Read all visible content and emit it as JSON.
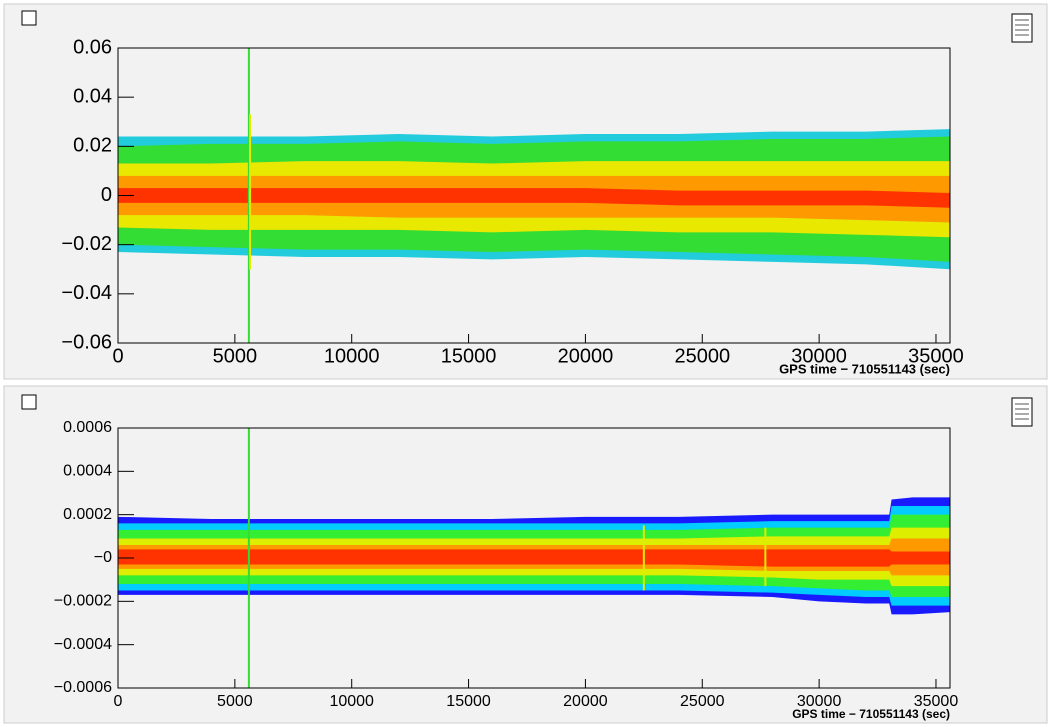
{
  "chart_data": [
    {
      "type": "band",
      "xlabel": "GPS time − 710551143  (sec)",
      "xlim": [
        0,
        35600
      ],
      "ylim": [
        -0.06,
        0.06
      ],
      "xticks": [
        0,
        5000,
        10000,
        15000,
        20000,
        25000,
        30000,
        35000
      ],
      "yticks": [
        0.06,
        0.04,
        0.02,
        0,
        {
          "value": -0.02,
          "label": "−0.02"
        },
        {
          "value": -0.04,
          "label": "−0.04"
        },
        {
          "value": -0.06,
          "label": "−0.06"
        }
      ],
      "x": [
        0,
        4000,
        8000,
        12000,
        16000,
        20000,
        24000,
        28000,
        32000,
        35600
      ],
      "bands": [
        {
          "color": "#22ccdd",
          "upper": [
            0.024,
            0.024,
            0.024,
            0.025,
            0.024,
            0.025,
            0.025,
            0.026,
            0.026,
            0.027
          ],
          "lower": [
            -0.023,
            -0.024,
            -0.025,
            -0.025,
            -0.026,
            -0.025,
            -0.026,
            -0.027,
            -0.028,
            -0.03
          ]
        },
        {
          "color": "#33dd33",
          "upper": [
            0.02,
            0.021,
            0.021,
            0.022,
            0.021,
            0.022,
            0.022,
            0.023,
            0.023,
            0.024
          ],
          "lower": [
            -0.02,
            -0.021,
            -0.022,
            -0.022,
            -0.023,
            -0.022,
            -0.023,
            -0.024,
            -0.025,
            -0.027
          ]
        },
        {
          "color": "#e8e800",
          "upper": [
            0.013,
            0.013,
            0.014,
            0.014,
            0.013,
            0.014,
            0.014,
            0.014,
            0.014,
            0.014
          ],
          "lower": [
            -0.013,
            -0.014,
            -0.014,
            -0.014,
            -0.015,
            -0.014,
            -0.015,
            -0.015,
            -0.016,
            -0.017
          ]
        },
        {
          "color": "#ff9900",
          "upper": [
            0.008,
            0.008,
            0.008,
            0.008,
            0.008,
            0.008,
            0.008,
            0.008,
            0.008,
            0.008
          ],
          "lower": [
            -0.008,
            -0.008,
            -0.008,
            -0.009,
            -0.009,
            -0.009,
            -0.009,
            -0.009,
            -0.01,
            -0.011
          ]
        },
        {
          "color": "#ff3300",
          "upper": [
            0.003,
            0.003,
            0.003,
            0.003,
            0.003,
            0.003,
            0.002,
            0.002,
            0.002,
            0.001
          ],
          "lower": [
            -0.003,
            -0.003,
            -0.003,
            -0.003,
            -0.003,
            -0.003,
            -0.004,
            -0.004,
            -0.004,
            -0.005
          ]
        }
      ],
      "spikes": [
        {
          "x": 5600,
          "low": -0.06,
          "high": 0.06,
          "color": "#33dd33"
        },
        {
          "x": 5650,
          "low": -0.03,
          "high": 0.033,
          "color": "#e8e800"
        }
      ]
    },
    {
      "type": "band",
      "xlabel": "GPS time − 710551143  (sec)",
      "xlim": [
        0,
        35600
      ],
      "ylim": [
        -0.0006,
        0.0006
      ],
      "xticks": [
        0,
        5000,
        10000,
        15000,
        20000,
        25000,
        30000,
        35000
      ],
      "yticks": [
        0.0006,
        0.0004,
        0.0002,
        {
          "value": 0,
          "label": "−0"
        },
        {
          "value": -0.0002,
          "label": "−0.0002"
        },
        {
          "value": -0.0004,
          "label": "−0.0004"
        },
        {
          "value": -0.0006,
          "label": "−0.0006"
        }
      ],
      "x": [
        0,
        4000,
        8000,
        12000,
        16000,
        20000,
        24000,
        28000,
        30000,
        32000,
        33000,
        33100,
        34000,
        35600
      ],
      "bands": [
        {
          "color": "#1a1aff",
          "upper": [
            0.00019,
            0.00018,
            0.00018,
            0.00018,
            0.00018,
            0.00019,
            0.00019,
            0.0002,
            0.0002,
            0.0002,
            0.0002,
            0.00027,
            0.00028,
            0.00028
          ],
          "lower": [
            -0.00017,
            -0.00017,
            -0.00017,
            -0.00017,
            -0.00017,
            -0.00017,
            -0.00017,
            -0.00018,
            -0.0002,
            -0.00021,
            -0.00021,
            -0.00026,
            -0.00026,
            -0.00025
          ]
        },
        {
          "color": "#00ccff",
          "upper": [
            0.00016,
            0.00016,
            0.00016,
            0.00016,
            0.00016,
            0.00016,
            0.00016,
            0.00017,
            0.00017,
            0.00017,
            0.00017,
            0.00024,
            0.00024,
            0.00024
          ],
          "lower": [
            -0.00015,
            -0.00015,
            -0.00015,
            -0.00015,
            -0.00015,
            -0.00015,
            -0.00015,
            -0.00016,
            -0.00017,
            -0.00018,
            -0.00018,
            -0.00022,
            -0.00022,
            -0.00022
          ]
        },
        {
          "color": "#33ee33",
          "upper": [
            0.00013,
            0.00013,
            0.00013,
            0.00013,
            0.00013,
            0.00013,
            0.00013,
            0.00014,
            0.00014,
            0.00014,
            0.00014,
            0.0002,
            0.0002,
            0.0002
          ],
          "lower": [
            -0.00012,
            -0.00012,
            -0.00012,
            -0.00012,
            -0.00012,
            -0.00012,
            -0.00012,
            -0.00013,
            -0.00014,
            -0.00015,
            -0.00015,
            -0.00018,
            -0.00018,
            -0.00018
          ]
        },
        {
          "color": "#ddee00",
          "upper": [
            9e-05,
            9e-05,
            9e-05,
            9e-05,
            9e-05,
            9e-05,
            9e-05,
            0.0001,
            0.0001,
            0.0001,
            0.0001,
            0.00014,
            0.00014,
            0.00014
          ],
          "lower": [
            -8e-05,
            -8e-05,
            -8e-05,
            -8e-05,
            -8e-05,
            -8e-05,
            -8e-05,
            -9e-05,
            -0.0001,
            -0.0001,
            -0.0001,
            -0.00013,
            -0.00013,
            -0.00013
          ]
        },
        {
          "color": "#ff9900",
          "upper": [
            6e-05,
            6e-05,
            6e-05,
            6e-05,
            6e-05,
            6e-05,
            6e-05,
            6e-05,
            6e-05,
            6e-05,
            6e-05,
            9e-05,
            9e-05,
            9e-05
          ],
          "lower": [
            -5e-05,
            -5e-05,
            -5e-05,
            -5e-05,
            -5e-05,
            -5e-05,
            -5e-05,
            -6e-05,
            -6e-05,
            -6e-05,
            -6e-05,
            -8e-05,
            -8e-05,
            -8e-05
          ]
        },
        {
          "color": "#ff3300",
          "upper": [
            4e-05,
            4e-05,
            4e-05,
            4e-05,
            4e-05,
            4e-05,
            4e-05,
            4e-05,
            4e-05,
            4e-05,
            4e-05,
            3e-05,
            3e-05,
            3e-05
          ],
          "lower": [
            -3e-05,
            -3e-05,
            -3e-05,
            -3e-05,
            -3e-05,
            -3e-05,
            -3e-05,
            -4e-05,
            -4e-05,
            -4e-05,
            -4e-05,
            -3e-05,
            -3e-05,
            -3e-05
          ]
        }
      ],
      "spikes": [
        {
          "x": 5600,
          "low": -0.0006,
          "high": 0.0006,
          "color": "#33dd33"
        },
        {
          "x": 22500,
          "low": -0.00015,
          "high": 0.00015,
          "color": "#ddee00"
        },
        {
          "x": 27700,
          "low": -0.00013,
          "high": 0.00014,
          "color": "#ddee00"
        }
      ]
    }
  ]
}
